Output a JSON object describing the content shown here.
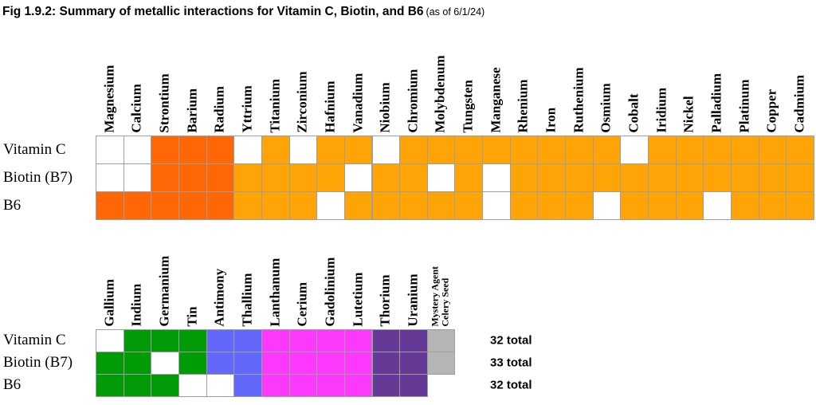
{
  "figure": {
    "title": "Fig 1.9.2: Summary of metallic interactions for Vitamin C, Biotin, and B6",
    "title_suffix": "(as of 6/1/24)"
  },
  "chart_data": {
    "type": "heatmap",
    "rows": [
      "Vitamin C",
      "Biotin (B7)",
      "B6"
    ],
    "palette": {
      "white": "#FFFFFF",
      "dark-orange": "#FF6606",
      "orange": "#FFA407",
      "green": "#009B06",
      "blue": "#6468FA",
      "magenta": "#FB38FC",
      "purple": "#653A96",
      "gray": "#B5B5B5"
    },
    "tables": [
      {
        "name": "top",
        "columns": [
          "Magnesium",
          "Calcium",
          "Strontium",
          "Barium",
          "Radium",
          "Yttrium",
          "Titanium",
          "Zirconium",
          "Hafnium",
          "Vanadium",
          "Niobium",
          "Chromium",
          "Molybdenum",
          "Tungsten",
          "Manganese",
          "Rhenium",
          "Iron",
          "Ruthenium",
          "Osmium",
          "Cobalt",
          "Iridium",
          "Nickel",
          "Palladium",
          "Platinum",
          "Copper",
          "Cadmium"
        ],
        "cells": [
          [
            "white",
            "white",
            "dark-orange",
            "dark-orange",
            "dark-orange",
            "white",
            "orange",
            "white",
            "orange",
            "orange",
            "white",
            "orange",
            "orange",
            "orange",
            "orange",
            "orange",
            "orange",
            "orange",
            "orange",
            "white",
            "orange",
            "orange",
            "orange",
            "orange",
            "orange",
            "orange"
          ],
          [
            "white",
            "white",
            "dark-orange",
            "dark-orange",
            "dark-orange",
            "orange",
            "orange",
            "orange",
            "orange",
            "white",
            "orange",
            "orange",
            "white",
            "orange",
            "white",
            "orange",
            "orange",
            "orange",
            "orange",
            "orange",
            "orange",
            "orange",
            "orange",
            "orange",
            "orange",
            "orange"
          ],
          [
            "dark-orange",
            "dark-orange",
            "dark-orange",
            "dark-orange",
            "dark-orange",
            "orange",
            "orange",
            "orange",
            "white",
            "orange",
            "orange",
            "orange",
            "orange",
            "orange",
            "white",
            "orange",
            "orange",
            "orange",
            "white",
            "orange",
            "orange",
            "orange",
            "white",
            "orange",
            "orange",
            "orange"
          ]
        ]
      },
      {
        "name": "bottom",
        "columns": [
          "Gallium",
          "Indium",
          "Germanium",
          "Tin",
          "Antimony",
          "Thallium",
          "Lanthanum",
          "Cerium",
          "Gadolinium",
          "Lutetium",
          "Thorium",
          "Uranium",
          "Mystery Agent\nCelery Seed"
        ],
        "cells": [
          [
            "white",
            "green",
            "green",
            "green",
            "blue",
            "blue",
            "magenta",
            "magenta",
            "magenta",
            "magenta",
            "purple",
            "purple",
            "gray"
          ],
          [
            "green",
            "green",
            "white",
            "green",
            "blue",
            "blue",
            "magenta",
            "magenta",
            "magenta",
            "magenta",
            "purple",
            "purple",
            "gray"
          ],
          [
            "green",
            "green",
            "green",
            "white",
            "white",
            "blue",
            "magenta",
            "magenta",
            "magenta",
            "magenta",
            "purple",
            "purple",
            null
          ]
        ],
        "totals": [
          "32 total",
          "33 total",
          "32 total"
        ]
      }
    ]
  }
}
